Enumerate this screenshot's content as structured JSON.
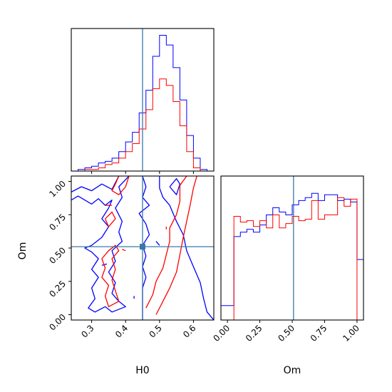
{
  "colors": {
    "sample_a": "#0000ff",
    "sample_b": "#ff0000",
    "truth": "#3a78a8"
  },
  "chart_data": [
    {
      "type": "histogram",
      "panel": "H0 marginal",
      "x_param": "H0",
      "xlim": [
        0.24,
        0.66
      ],
      "bin_edges": [
        0.24,
        0.26,
        0.28,
        0.3,
        0.32,
        0.34,
        0.36,
        0.38,
        0.4,
        0.42,
        0.44,
        0.46,
        0.48,
        0.5,
        0.52,
        0.54,
        0.56,
        0.58,
        0.6,
        0.62,
        0.64,
        0.66
      ],
      "series": [
        {
          "counts": [
            0,
            1,
            2,
            3,
            5,
            6,
            8,
            12,
            18,
            24,
            36,
            50,
            71,
            84,
            78,
            64,
            44,
            22,
            8,
            1,
            0
          ]
        },
        {
          "counts": [
            0,
            0,
            1,
            1,
            2,
            4,
            5,
            8,
            12,
            17,
            26,
            38,
            51,
            57,
            53,
            43,
            28,
            12,
            2,
            0,
            0
          ]
        }
      ],
      "truth": 0.45
    },
    {
      "type": "contour",
      "panel": "H0 vs Om",
      "xlabel": "H0",
      "ylabel": "Om",
      "xlim": [
        0.24,
        0.66
      ],
      "ylim": [
        -0.04,
        1.04
      ],
      "xticks": [
        "0.3",
        "0.4",
        "0.5",
        "0.6"
      ],
      "xtick_values": [
        0.3,
        0.4,
        0.5,
        0.6
      ],
      "yticks": [
        "0.00",
        "0.25",
        "0.50",
        "0.75",
        "1.00"
      ],
      "ytick_values": [
        0.0,
        0.25,
        0.5,
        0.75,
        1.0
      ],
      "series": [
        {
          "contours": [
            [
              [
                0.24,
                0.92
              ],
              [
                0.27,
                0.96
              ],
              [
                0.3,
                0.93
              ],
              [
                0.33,
                0.98
              ],
              [
                0.36,
                0.94
              ],
              [
                0.38,
                1.04
              ]
            ],
            [
              [
                0.24,
                0.86
              ],
              [
                0.26,
                0.89
              ],
              [
                0.28,
                0.86
              ],
              [
                0.3,
                0.83
              ],
              [
                0.32,
                0.87
              ],
              [
                0.34,
                0.82
              ],
              [
                0.36,
                0.86
              ],
              [
                0.35,
                0.8
              ],
              [
                0.33,
                0.72
              ],
              [
                0.35,
                0.66
              ],
              [
                0.33,
                0.58
              ],
              [
                0.3,
                0.52
              ],
              [
                0.28,
                0.5
              ],
              [
                0.3,
                0.47
              ],
              [
                0.32,
                0.42
              ],
              [
                0.3,
                0.34
              ],
              [
                0.32,
                0.28
              ],
              [
                0.3,
                0.2
              ],
              [
                0.31,
                0.12
              ],
              [
                0.29,
                0.05
              ],
              [
                0.31,
                0.02
              ],
              [
                0.34,
                0.06
              ],
              [
                0.36,
                0.02
              ],
              [
                0.4,
                0.06
              ],
              [
                0.38,
                0.1
              ],
              [
                0.36,
                0.16
              ],
              [
                0.37,
                0.24
              ],
              [
                0.35,
                0.32
              ],
              [
                0.37,
                0.4
              ],
              [
                0.36,
                0.48
              ],
              [
                0.39,
                0.55
              ],
              [
                0.38,
                0.62
              ],
              [
                0.39,
                0.7
              ],
              [
                0.37,
                0.8
              ],
              [
                0.39,
                0.88
              ],
              [
                0.38,
                0.96
              ],
              [
                0.41,
                1.04
              ]
            ],
            [
              [
                0.45,
                1.04
              ],
              [
                0.46,
                0.96
              ],
              [
                0.45,
                0.88
              ],
              [
                0.47,
                0.82
              ],
              [
                0.44,
                0.76
              ],
              [
                0.46,
                0.68
              ],
              [
                0.47,
                0.6
              ],
              [
                0.45,
                0.52
              ],
              [
                0.46,
                0.44
              ],
              [
                0.45,
                0.36
              ],
              [
                0.46,
                0.28
              ],
              [
                0.45,
                0.2
              ],
              [
                0.45,
                0.12
              ],
              [
                0.45,
                -0.04
              ]
            ],
            [
              [
                0.5,
                1.04
              ],
              [
                0.5,
                0.95
              ],
              [
                0.51,
                0.88
              ],
              [
                0.53,
                0.82
              ],
              [
                0.55,
                0.7
              ],
              [
                0.57,
                0.6
              ],
              [
                0.58,
                0.48
              ],
              [
                0.6,
                0.36
              ],
              [
                0.62,
                0.24
              ],
              [
                0.63,
                0.12
              ],
              [
                0.64,
                0.02
              ],
              [
                0.66,
                -0.04
              ]
            ],
            [
              [
                0.53,
                0.96
              ],
              [
                0.55,
                0.9
              ],
              [
                0.56,
                0.98
              ],
              [
                0.55,
                1.02
              ],
              [
                0.53,
                0.96
              ]
            ],
            [
              [
                0.425,
                0.14
              ],
              [
                0.425,
                0.12
              ]
            ],
            [
              [
                0.345,
                0.38
              ],
              [
                0.33,
                0.37
              ]
            ],
            [
              [
                0.49,
                0.55
              ],
              [
                0.5,
                0.52
              ]
            ]
          ]
        },
        {
          "contours": [
            [
              [
                0.38,
                1.04
              ],
              [
                0.37,
                0.98
              ],
              [
                0.36,
                0.93
              ],
              [
                0.38,
                0.9
              ],
              [
                0.4,
                0.96
              ],
              [
                0.41,
                1.04
              ]
            ],
            [
              [
                0.34,
                0.72
              ],
              [
                0.36,
                0.77
              ],
              [
                0.37,
                0.72
              ],
              [
                0.35,
                0.66
              ],
              [
                0.34,
                0.72
              ]
            ],
            [
              [
                0.34,
                0.82
              ],
              [
                0.36,
                0.82
              ]
            ],
            [
              [
                0.35,
                0.48
              ],
              [
                0.33,
                0.42
              ],
              [
                0.34,
                0.35
              ],
              [
                0.33,
                0.28
              ],
              [
                0.35,
                0.22
              ],
              [
                0.34,
                0.14
              ],
              [
                0.35,
                0.06
              ],
              [
                0.38,
                0.1
              ],
              [
                0.37,
                0.18
              ],
              [
                0.36,
                0.26
              ],
              [
                0.37,
                0.34
              ],
              [
                0.36,
                0.42
              ],
              [
                0.38,
                0.48
              ],
              [
                0.37,
                0.52
              ],
              [
                0.35,
                0.48
              ]
            ],
            [
              [
                0.46,
                0.05
              ],
              [
                0.48,
                0.15
              ],
              [
                0.49,
                0.25
              ],
              [
                0.51,
                0.35
              ],
              [
                0.52,
                0.45
              ],
              [
                0.53,
                0.55
              ],
              [
                0.53,
                0.65
              ],
              [
                0.55,
                0.75
              ],
              [
                0.56,
                0.85
              ],
              [
                0.56,
                0.97
              ],
              [
                0.58,
                1.04
              ]
            ],
            [
              [
                0.49,
                0.0
              ],
              [
                0.51,
                0.1
              ],
              [
                0.53,
                0.2
              ],
              [
                0.55,
                0.32
              ],
              [
                0.56,
                0.45
              ],
              [
                0.57,
                0.58
              ],
              [
                0.58,
                0.7
              ],
              [
                0.59,
                0.82
              ],
              [
                0.6,
                0.95
              ],
              [
                0.61,
                1.04
              ]
            ],
            [
              [
                0.39,
                0.49
              ],
              [
                0.4,
                0.48
              ]
            ],
            [
              [
                0.52,
                0.66
              ],
              [
                0.52,
                0.64
              ]
            ]
          ]
        }
      ],
      "truth": {
        "x": 0.45,
        "y": 0.51
      }
    },
    {
      "type": "histogram",
      "panel": "Om marginal",
      "xlabel": "Om",
      "x_param": "Om",
      "xlim": [
        -0.05,
        1.05
      ],
      "ylim": [
        0,
        1.0
      ],
      "xticks": [
        "0.00",
        "0.25",
        "0.50",
        "0.75",
        "1.00"
      ],
      "xtick_values": [
        0.0,
        0.25,
        0.5,
        0.75,
        1.0
      ],
      "bin_edges": [
        -0.05,
        0.0,
        0.05,
        0.1,
        0.15,
        0.2,
        0.25,
        0.3,
        0.35,
        0.4,
        0.45,
        0.5,
        0.55,
        0.6,
        0.65,
        0.7,
        0.75,
        0.8,
        0.85,
        0.9,
        0.95,
        1.0,
        1.05
      ],
      "series": [
        {
          "counts": [
            0.1,
            0.1,
            0.58,
            0.61,
            0.63,
            0.61,
            0.66,
            0.73,
            0.78,
            0.75,
            0.73,
            0.8,
            0.83,
            0.85,
            0.88,
            0.83,
            0.87,
            0.87,
            0.83,
            0.84,
            0.82,
            0.42
          ]
        },
        {
          "counts": [
            0,
            0,
            0.72,
            0.68,
            0.69,
            0.65,
            0.69,
            0.64,
            0.73,
            0.64,
            0.67,
            0.72,
            0.69,
            0.7,
            0.83,
            0.7,
            0.73,
            0.73,
            0.85,
            0.79,
            0.84,
            0.0
          ]
        }
      ],
      "truth": 0.51
    }
  ]
}
